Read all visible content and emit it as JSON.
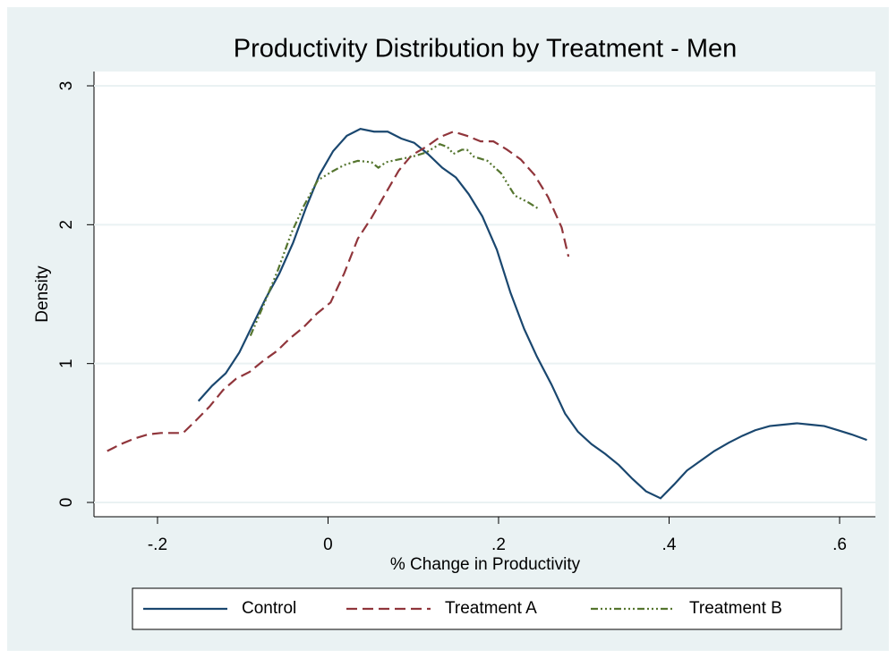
{
  "chart_data": {
    "type": "line",
    "title": "Productivity Distribution by Treatment - Men",
    "x_label": "% Change in Productivity",
    "y_label": "Density",
    "xlim": [
      -0.2745,
      0.642
    ],
    "ylim": [
      -0.103,
      3.103
    ],
    "xticks": [
      {
        "value": -0.2,
        "label": "-.2"
      },
      0,
      {
        "value": 0.2,
        "label": ".2"
      },
      {
        "value": 0.4,
        "label": ".4"
      },
      {
        "value": 0.6,
        "label": ".6"
      }
    ],
    "yticks": [
      0,
      1,
      2,
      3
    ],
    "grid": true,
    "legend": "bottom",
    "series": [
      {
        "name": "Control",
        "color": "#1a476f",
        "dash": "none",
        "x": [
          -0.152,
          -0.136,
          -0.12,
          -0.104,
          -0.089,
          -0.073,
          -0.057,
          -0.041,
          -0.026,
          -0.01,
          0.006,
          0.022,
          0.038,
          0.054,
          0.07,
          0.086,
          0.101,
          0.117,
          0.134,
          0.15,
          0.165,
          0.181,
          0.198,
          0.214,
          0.23,
          0.245,
          0.262,
          0.278,
          0.293,
          0.309,
          0.325,
          0.341,
          0.357,
          0.373,
          0.39,
          0.406,
          0.421,
          0.437,
          0.453,
          0.47,
          0.486,
          0.501,
          0.518,
          0.534,
          0.55,
          0.566,
          0.582,
          0.598,
          0.614,
          0.632
        ],
        "values": [
          0.73,
          0.84,
          0.93,
          1.08,
          1.27,
          1.47,
          1.65,
          1.87,
          2.12,
          2.36,
          2.53,
          2.64,
          2.69,
          2.67,
          2.67,
          2.62,
          2.59,
          2.51,
          2.41,
          2.34,
          2.22,
          2.06,
          1.82,
          1.51,
          1.25,
          1.05,
          0.85,
          0.64,
          0.51,
          0.42,
          0.35,
          0.27,
          0.17,
          0.08,
          0.03,
          0.13,
          0.23,
          0.3,
          0.37,
          0.43,
          0.48,
          0.52,
          0.55,
          0.56,
          0.57,
          0.56,
          0.55,
          0.52,
          0.49,
          0.45
        ]
      },
      {
        "name": "Treatment A",
        "color": "#90353b",
        "dash": "12 6",
        "x": [
          -0.259,
          -0.243,
          -0.227,
          -0.211,
          -0.196,
          -0.17,
          -0.155,
          -0.139,
          -0.123,
          -0.108,
          -0.092,
          -0.076,
          -0.06,
          -0.045,
          -0.029,
          -0.013,
          0.003,
          0.019,
          0.035,
          0.051,
          0.067,
          0.083,
          0.098,
          0.115,
          0.131,
          0.147,
          0.163,
          0.179,
          0.194,
          0.21,
          0.226,
          0.242,
          0.258,
          0.274,
          0.282
        ],
        "values": [
          0.37,
          0.42,
          0.46,
          0.49,
          0.5,
          0.5,
          0.59,
          0.69,
          0.81,
          0.89,
          0.94,
          1.02,
          1.09,
          1.18,
          1.26,
          1.36,
          1.44,
          1.65,
          1.9,
          2.05,
          2.22,
          2.39,
          2.5,
          2.56,
          2.63,
          2.67,
          2.64,
          2.6,
          2.6,
          2.54,
          2.47,
          2.36,
          2.2,
          1.98,
          1.77
        ]
      },
      {
        "name": "Treatment B",
        "color": "#55752f",
        "dash": "8 3 2 3 2 3 2 3",
        "x": [
          -0.091,
          -0.075,
          -0.059,
          -0.043,
          -0.028,
          -0.012,
          0.004,
          0.019,
          0.035,
          0.051,
          0.059,
          0.068,
          0.083,
          0.099,
          0.115,
          0.131,
          0.14,
          0.147,
          0.157,
          0.163,
          0.171,
          0.187,
          0.203,
          0.219,
          0.235,
          0.248
        ],
        "values": [
          1.2,
          1.43,
          1.67,
          1.94,
          2.14,
          2.32,
          2.38,
          2.43,
          2.46,
          2.45,
          2.41,
          2.45,
          2.47,
          2.49,
          2.52,
          2.58,
          2.56,
          2.51,
          2.54,
          2.54,
          2.49,
          2.46,
          2.37,
          2.21,
          2.16,
          2.11
        ]
      }
    ]
  }
}
